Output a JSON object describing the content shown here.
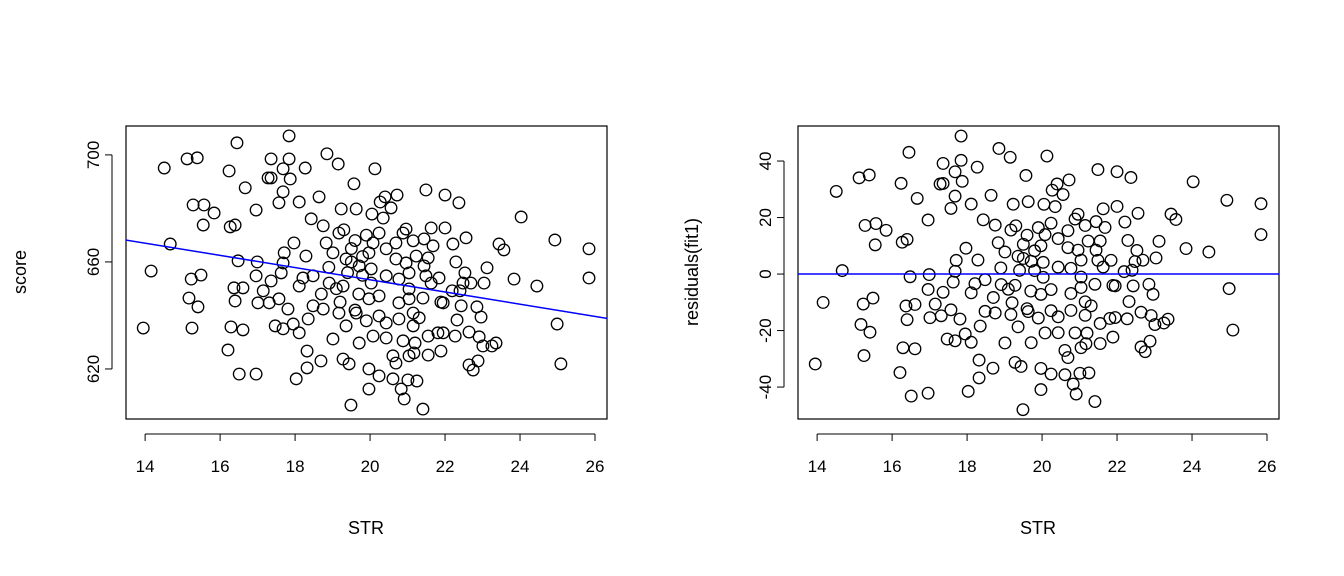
{
  "chart_data": [
    {
      "type": "scatter",
      "title": "",
      "xlabel": "STR",
      "ylabel": "score",
      "xlim": [
        13.49,
        26.32
      ],
      "ylim": [
        601.3,
        710.8
      ],
      "xticks": [
        "14",
        "16",
        "18",
        "20",
        "22",
        "24",
        "26"
      ],
      "yticks": [
        "620",
        "660",
        "700"
      ],
      "grid": false,
      "regression_line": {
        "intercept": 698.93,
        "slope": -2.28,
        "color": "#0000ff"
      },
      "point_color": "#000000"
    },
    {
      "type": "scatter",
      "title": "",
      "xlabel": "STR",
      "ylabel": "residuals(fit1)",
      "xlim": [
        13.49,
        26.32
      ],
      "ylim": [
        -51.3,
        52.4
      ],
      "xticks": [
        "14",
        "16",
        "18",
        "20",
        "22",
        "24",
        "26"
      ],
      "yticks": [
        "-40",
        "-20",
        "0",
        "20",
        "40"
      ],
      "grid": false,
      "reference_line": {
        "y": 0,
        "color": "#0000ff"
      },
      "point_color": "#000000"
    }
  ],
  "points": [
    [
      14.51,
      695.1
    ],
    [
      15.12,
      698.5
    ],
    [
      15.39,
      698.9
    ],
    [
      16.45,
      704.5
    ],
    [
      17.84,
      707.1
    ],
    [
      16.24,
      694.0
    ],
    [
      17.36,
      698.5
    ],
    [
      17.84,
      698.5
    ],
    [
      18.27,
      695.1
    ],
    [
      18.85,
      700.4
    ],
    [
      19.15,
      696.6
    ],
    [
      19.57,
      689.2
    ],
    [
      16.67,
      687.7
    ],
    [
      17.28,
      691.4
    ],
    [
      17.36,
      691.4
    ],
    [
      17.68,
      694.8
    ],
    [
      17.87,
      691.0
    ],
    [
      17.68,
      686.2
    ],
    [
      15.28,
      681.3
    ],
    [
      15.57,
      681.3
    ],
    [
      15.84,
      678.3
    ],
    [
      15.55,
      673.8
    ],
    [
      16.27,
      673.1
    ],
    [
      16.4,
      673.8
    ],
    [
      16.96,
      679.4
    ],
    [
      17.57,
      682.1
    ],
    [
      18.11,
      682.4
    ],
    [
      18.64,
      684.3
    ],
    [
      14.67,
      666.7
    ],
    [
      14.16,
      656.6
    ],
    [
      15.23,
      653.6
    ],
    [
      15.49,
      655.1
    ],
    [
      16.48,
      660.4
    ],
    [
      16.99,
      660.0
    ],
    [
      16.37,
      650.3
    ],
    [
      16.61,
      650.3
    ],
    [
      16.4,
      645.4
    ],
    [
      15.17,
      646.5
    ],
    [
      15.41,
      643.2
    ],
    [
      13.95,
      635.3
    ],
    [
      15.25,
      635.3
    ],
    [
      16.29,
      635.7
    ],
    [
      16.61,
      634.6
    ],
    [
      16.21,
      627.1
    ],
    [
      16.51,
      618.1
    ],
    [
      16.96,
      618.1
    ],
    [
      18.03,
      616.3
    ],
    [
      18.32,
      620.4
    ],
    [
      18.69,
      623.0
    ],
    [
      18.32,
      626.7
    ],
    [
      19.49,
      606.5
    ],
    [
      17.47,
      636.1
    ],
    [
      17.68,
      635.0
    ],
    [
      18.11,
      633.5
    ],
    [
      17.81,
      642.4
    ],
    [
      17.01,
      644.7
    ],
    [
      17.31,
      644.7
    ],
    [
      17.57,
      646.2
    ],
    [
      17.15,
      649.2
    ],
    [
      17.36,
      652.9
    ],
    [
      16.96,
      654.8
    ],
    [
      17.63,
      655.9
    ],
    [
      17.68,
      659.6
    ],
    [
      17.71,
      663.4
    ],
    [
      17.97,
      667.1
    ],
    [
      18.29,
      662.2
    ],
    [
      18.21,
      654.0
    ],
    [
      18.11,
      651.0
    ],
    [
      18.48,
      654.8
    ],
    [
      18.83,
      667.1
    ],
    [
      19.17,
      670.8
    ],
    [
      18.75,
      673.5
    ],
    [
      18.43,
      676.1
    ],
    [
      19.23,
      679.8
    ],
    [
      19.63,
      679.8
    ],
    [
      19.01,
      663.4
    ],
    [
      19.36,
      661.1
    ],
    [
      19.71,
      658.5
    ],
    [
      18.91,
      652.1
    ],
    [
      19.28,
      651.0
    ],
    [
      18.75,
      642.4
    ],
    [
      19.17,
      640.9
    ],
    [
      19.63,
      640.9
    ],
    [
      19.01,
      631.2
    ],
    [
      19.36,
      636.1
    ],
    [
      19.71,
      629.7
    ],
    [
      19.28,
      623.7
    ],
    [
      19.44,
      621.9
    ],
    [
      18.35,
      638.7
    ],
    [
      18.48,
      643.6
    ],
    [
      17.95,
      636.8
    ],
    [
      20.13,
      694.8
    ],
    [
      21.49,
      686.9
    ],
    [
      22.0,
      685.0
    ],
    [
      22.37,
      682.1
    ],
    [
      20.72,
      685.0
    ],
    [
      20.4,
      684.3
    ],
    [
      20.27,
      682.4
    ],
    [
      20.56,
      680.2
    ],
    [
      20.05,
      677.9
    ],
    [
      20.35,
      676.4
    ],
    [
      24.03,
      676.8
    ],
    [
      24.93,
      668.2
    ],
    [
      25.84,
      664.9
    ],
    [
      25.84,
      654.0
    ],
    [
      23.44,
      666.7
    ],
    [
      23.57,
      664.5
    ],
    [
      23.84,
      653.6
    ],
    [
      24.45,
      651.0
    ],
    [
      23.12,
      657.8
    ],
    [
      23.04,
      652.1
    ],
    [
      22.56,
      669.0
    ],
    [
      22.0,
      672.7
    ],
    [
      21.63,
      672.7
    ],
    [
      22.21,
      666.7
    ],
    [
      22.29,
      660.0
    ],
    [
      22.53,
      655.9
    ],
    [
      22.69,
      652.1
    ],
    [
      22.48,
      652.1
    ],
    [
      22.19,
      649.2
    ],
    [
      22.4,
      649.2
    ],
    [
      21.84,
      654.0
    ],
    [
      21.63,
      652.1
    ],
    [
      21.89,
      645.0
    ],
    [
      22.43,
      643.6
    ],
    [
      22.85,
      643.2
    ],
    [
      22.96,
      639.4
    ],
    [
      22.32,
      638.3
    ],
    [
      24.99,
      636.8
    ],
    [
      25.09,
      621.9
    ],
    [
      22.64,
      633.8
    ],
    [
      22.91,
      632.0
    ],
    [
      22.27,
      632.3
    ],
    [
      23.01,
      628.6
    ],
    [
      23.36,
      629.7
    ],
    [
      23.25,
      628.6
    ],
    [
      22.64,
      621.5
    ],
    [
      22.75,
      619.6
    ],
    [
      22.88,
      623.0
    ],
    [
      21.89,
      626.7
    ],
    [
      21.55,
      625.2
    ],
    [
      21.95,
      633.5
    ],
    [
      21.81,
      633.5
    ],
    [
      21.04,
      624.9
    ],
    [
      21.17,
      626.0
    ],
    [
      20.61,
      624.9
    ],
    [
      20.69,
      622.2
    ],
    [
      20.24,
      617.4
    ],
    [
      20.61,
      616.3
    ],
    [
      21.01,
      615.9
    ],
    [
      21.25,
      615.5
    ],
    [
      20.83,
      612.5
    ],
    [
      20.91,
      608.8
    ],
    [
      21.41,
      605.0
    ],
    [
      19.97,
      612.5
    ],
    [
      19.97,
      620.0
    ],
    [
      21.2,
      629.7
    ],
    [
      20.88,
      630.5
    ],
    [
      21.55,
      632.3
    ],
    [
      20.43,
      631.6
    ],
    [
      20.08,
      632.3
    ],
    [
      21.95,
      644.7
    ],
    [
      21.41,
      646.5
    ],
    [
      21.04,
      646.2
    ],
    [
      20.77,
      644.7
    ],
    [
      21.15,
      640.9
    ],
    [
      21.31,
      639.1
    ],
    [
      21.15,
      636.1
    ],
    [
      20.24,
      647.3
    ],
    [
      19.97,
      646.2
    ],
    [
      20.24,
      639.8
    ],
    [
      20.43,
      637.2
    ],
    [
      20.77,
      638.7
    ],
    [
      20.03,
      652.1
    ],
    [
      20.43,
      654.8
    ],
    [
      20.77,
      653.6
    ],
    [
      21.04,
      649.9
    ],
    [
      21.04,
      655.9
    ],
    [
      21.49,
      654.8
    ],
    [
      21.44,
      658.5
    ],
    [
      21.55,
      661.5
    ],
    [
      21.68,
      666.0
    ],
    [
      21.44,
      668.6
    ],
    [
      21.23,
      662.2
    ],
    [
      20.96,
      659.6
    ],
    [
      20.69,
      661.1
    ],
    [
      20.43,
      664.9
    ],
    [
      20.08,
      667.1
    ],
    [
      20.88,
      670.8
    ],
    [
      20.96,
      672.3
    ],
    [
      21.15,
      667.9
    ],
    [
      20.69,
      667.1
    ],
    [
      20.24,
      670.8
    ],
    [
      19.97,
      663.4
    ],
    [
      20.03,
      657.4
    ],
    [
      19.5,
      665.0
    ],
    [
      19.6,
      668.0
    ],
    [
      19.8,
      662.0
    ],
    [
      19.3,
      672.0
    ],
    [
      19.9,
      670.0
    ],
    [
      19.4,
      656.0
    ],
    [
      19.7,
      648.0
    ],
    [
      19.2,
      645.0
    ],
    [
      19.9,
      638.0
    ],
    [
      19.5,
      660.0
    ],
    [
      18.9,
      658.0
    ],
    [
      19.1,
      650.0
    ],
    [
      18.7,
      648.0
    ],
    [
      19.8,
      655.0
    ],
    [
      19.6,
      642.0
    ]
  ]
}
